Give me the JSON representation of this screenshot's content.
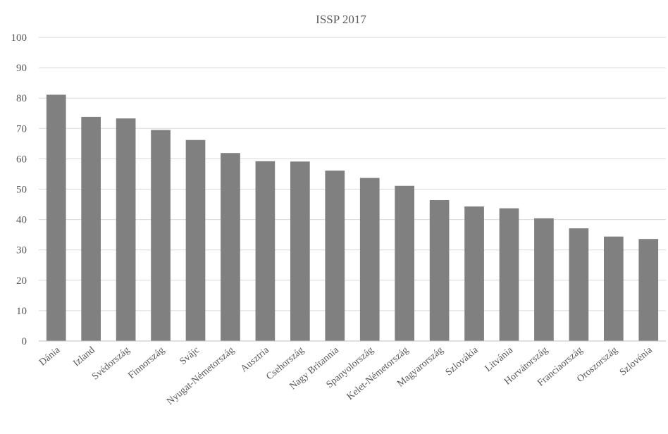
{
  "chart_data": {
    "type": "bar",
    "title": "ISSP 2017",
    "xlabel": "",
    "ylabel": "",
    "ylim": [
      0,
      100
    ],
    "yticks": [
      "0",
      "10",
      "20",
      "30",
      "40",
      "50",
      "60",
      "70",
      "80",
      "90",
      "100"
    ],
    "grid": true,
    "legend": "none",
    "bar_color": "#808080",
    "categories": [
      "Dánia",
      "Izland",
      "Svédország",
      "Finnország",
      "Svájc",
      "Nyugat-Németország",
      "Ausztria",
      "Csehország",
      "Nagy Britannia",
      "Spanyolország",
      "Kelet-Németország",
      "Magyarország",
      "Szlovákia",
      "Litvánia",
      "Horvátország",
      "Franciaország",
      "Oroszország",
      "Szlovénia"
    ],
    "values": [
      81.1,
      73.8,
      73.3,
      69.5,
      66.2,
      61.9,
      59.2,
      59.1,
      56.1,
      53.7,
      51.1,
      46.4,
      44.3,
      43.7,
      40.4,
      37.1,
      34.4,
      33.6
    ]
  }
}
